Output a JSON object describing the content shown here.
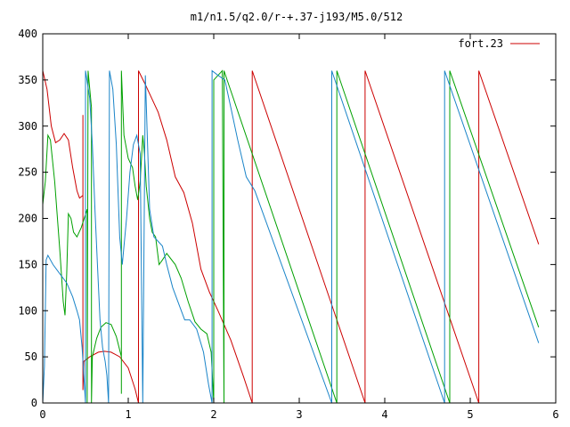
{
  "chart_data": {
    "type": "line",
    "title": "m1/n1.5/q2.0/r-+.37-j193/M5.0/512",
    "xlabel": "",
    "ylabel": "",
    "xlim": [
      0,
      6
    ],
    "ylim": [
      0,
      400
    ],
    "x_ticks": [
      0,
      1,
      2,
      3,
      4,
      5,
      6
    ],
    "y_ticks": [
      0,
      50,
      100,
      150,
      200,
      250,
      300,
      350,
      400
    ],
    "grid": false,
    "legend_position": "top-right",
    "series": [
      {
        "name": "fort.23",
        "color": "#cc0000",
        "points": [
          [
            0.0,
            360
          ],
          [
            0.05,
            340
          ],
          [
            0.1,
            300
          ],
          [
            0.15,
            282
          ],
          [
            0.2,
            285
          ],
          [
            0.25,
            292
          ],
          [
            0.3,
            285
          ],
          [
            0.35,
            255
          ],
          [
            0.4,
            230
          ],
          [
            0.43,
            222
          ],
          [
            0.47,
            225
          ],
          [
            0.47,
            312
          ],
          [
            0.47,
            14
          ],
          [
            0.48,
            45
          ],
          [
            0.55,
            50
          ],
          [
            0.65,
            55
          ],
          [
            0.72,
            56
          ],
          [
            0.8,
            55
          ],
          [
            0.9,
            50
          ],
          [
            1.0,
            38
          ],
          [
            1.08,
            15
          ],
          [
            1.12,
            0
          ],
          [
            1.12,
            360
          ],
          [
            1.2,
            345
          ],
          [
            1.35,
            315
          ],
          [
            1.45,
            285
          ],
          [
            1.55,
            245
          ],
          [
            1.65,
            228
          ],
          [
            1.75,
            195
          ],
          [
            1.85,
            145
          ],
          [
            1.95,
            120
          ],
          [
            2.05,
            100
          ],
          [
            2.2,
            68
          ],
          [
            2.35,
            28
          ],
          [
            2.45,
            0
          ],
          [
            2.45,
            360
          ],
          [
            3.77,
            0
          ],
          [
            3.77,
            360
          ],
          [
            5.1,
            0
          ],
          [
            5.1,
            360
          ],
          [
            5.8,
            172
          ]
        ]
      },
      {
        "name": "",
        "color": "#00a000",
        "points": [
          [
            0.0,
            215
          ],
          [
            0.03,
            240
          ],
          [
            0.06,
            290
          ],
          [
            0.09,
            285
          ],
          [
            0.14,
            240
          ],
          [
            0.2,
            165
          ],
          [
            0.24,
            110
          ],
          [
            0.26,
            95
          ],
          [
            0.28,
            140
          ],
          [
            0.3,
            205
          ],
          [
            0.33,
            200
          ],
          [
            0.36,
            185
          ],
          [
            0.4,
            180
          ],
          [
            0.45,
            190
          ],
          [
            0.52,
            210
          ],
          [
            0.52,
            0
          ],
          [
            0.53,
            360
          ],
          [
            0.55,
            340
          ],
          [
            0.57,
            320
          ],
          [
            0.57,
            0
          ],
          [
            0.58,
            50
          ],
          [
            0.63,
            70
          ],
          [
            0.68,
            82
          ],
          [
            0.74,
            87
          ],
          [
            0.8,
            85
          ],
          [
            0.86,
            72
          ],
          [
            0.92,
            50
          ],
          [
            0.92,
            10
          ],
          [
            0.92,
            360
          ],
          [
            0.95,
            290
          ],
          [
            1.0,
            265
          ],
          [
            1.05,
            255
          ],
          [
            1.08,
            235
          ],
          [
            1.11,
            220
          ],
          [
            1.14,
            240
          ],
          [
            1.17,
            290
          ],
          [
            1.19,
            270
          ],
          [
            1.21,
            235
          ],
          [
            1.25,
            200
          ],
          [
            1.28,
            185
          ],
          [
            1.32,
            180
          ],
          [
            1.36,
            150
          ],
          [
            1.4,
            155
          ],
          [
            1.45,
            162
          ],
          [
            1.55,
            150
          ],
          [
            1.62,
            135
          ],
          [
            1.7,
            110
          ],
          [
            1.78,
            88
          ],
          [
            1.85,
            80
          ],
          [
            1.92,
            75
          ],
          [
            1.97,
            55
          ],
          [
            2.0,
            0
          ],
          [
            2.0,
            350
          ],
          [
            2.05,
            355
          ],
          [
            2.1,
            360
          ],
          [
            2.12,
            0
          ],
          [
            2.12,
            360
          ],
          [
            3.44,
            0
          ],
          [
            3.44,
            360
          ],
          [
            4.76,
            0
          ],
          [
            4.76,
            360
          ],
          [
            5.8,
            82
          ]
        ]
      },
      {
        "name": "",
        "color": "#1a84c8",
        "points": [
          [
            0.0,
            0
          ],
          [
            0.02,
            40
          ],
          [
            0.04,
            155
          ],
          [
            0.06,
            160
          ],
          [
            0.12,
            150
          ],
          [
            0.2,
            140
          ],
          [
            0.28,
            130
          ],
          [
            0.35,
            115
          ],
          [
            0.4,
            100
          ],
          [
            0.43,
            90
          ],
          [
            0.46,
            60
          ],
          [
            0.48,
            30
          ],
          [
            0.5,
            0
          ],
          [
            0.5,
            360
          ],
          [
            0.55,
            330
          ],
          [
            0.58,
            280
          ],
          [
            0.61,
            210
          ],
          [
            0.64,
            150
          ],
          [
            0.67,
            90
          ],
          [
            0.7,
            60
          ],
          [
            0.73,
            45
          ],
          [
            0.75,
            30
          ],
          [
            0.77,
            0
          ],
          [
            0.78,
            360
          ],
          [
            0.82,
            340
          ],
          [
            0.86,
            280
          ],
          [
            0.9,
            180
          ],
          [
            0.93,
            150
          ],
          [
            0.98,
            200
          ],
          [
            1.02,
            250
          ],
          [
            1.06,
            280
          ],
          [
            1.1,
            290
          ],
          [
            1.14,
            270
          ],
          [
            1.17,
            0
          ],
          [
            1.2,
            355
          ],
          [
            1.25,
            210
          ],
          [
            1.3,
            180
          ],
          [
            1.35,
            175
          ],
          [
            1.4,
            170
          ],
          [
            1.45,
            150
          ],
          [
            1.52,
            125
          ],
          [
            1.6,
            105
          ],
          [
            1.66,
            90
          ],
          [
            1.72,
            90
          ],
          [
            1.8,
            80
          ],
          [
            1.88,
            55
          ],
          [
            1.94,
            20
          ],
          [
            1.98,
            0
          ],
          [
            1.98,
            360
          ],
          [
            2.05,
            355
          ],
          [
            2.13,
            350
          ],
          [
            2.2,
            320
          ],
          [
            2.28,
            285
          ],
          [
            2.38,
            245
          ],
          [
            2.48,
            230
          ],
          [
            3.38,
            0
          ],
          [
            3.38,
            360
          ],
          [
            4.7,
            0
          ],
          [
            4.7,
            360
          ],
          [
            5.8,
            65
          ]
        ]
      }
    ]
  }
}
